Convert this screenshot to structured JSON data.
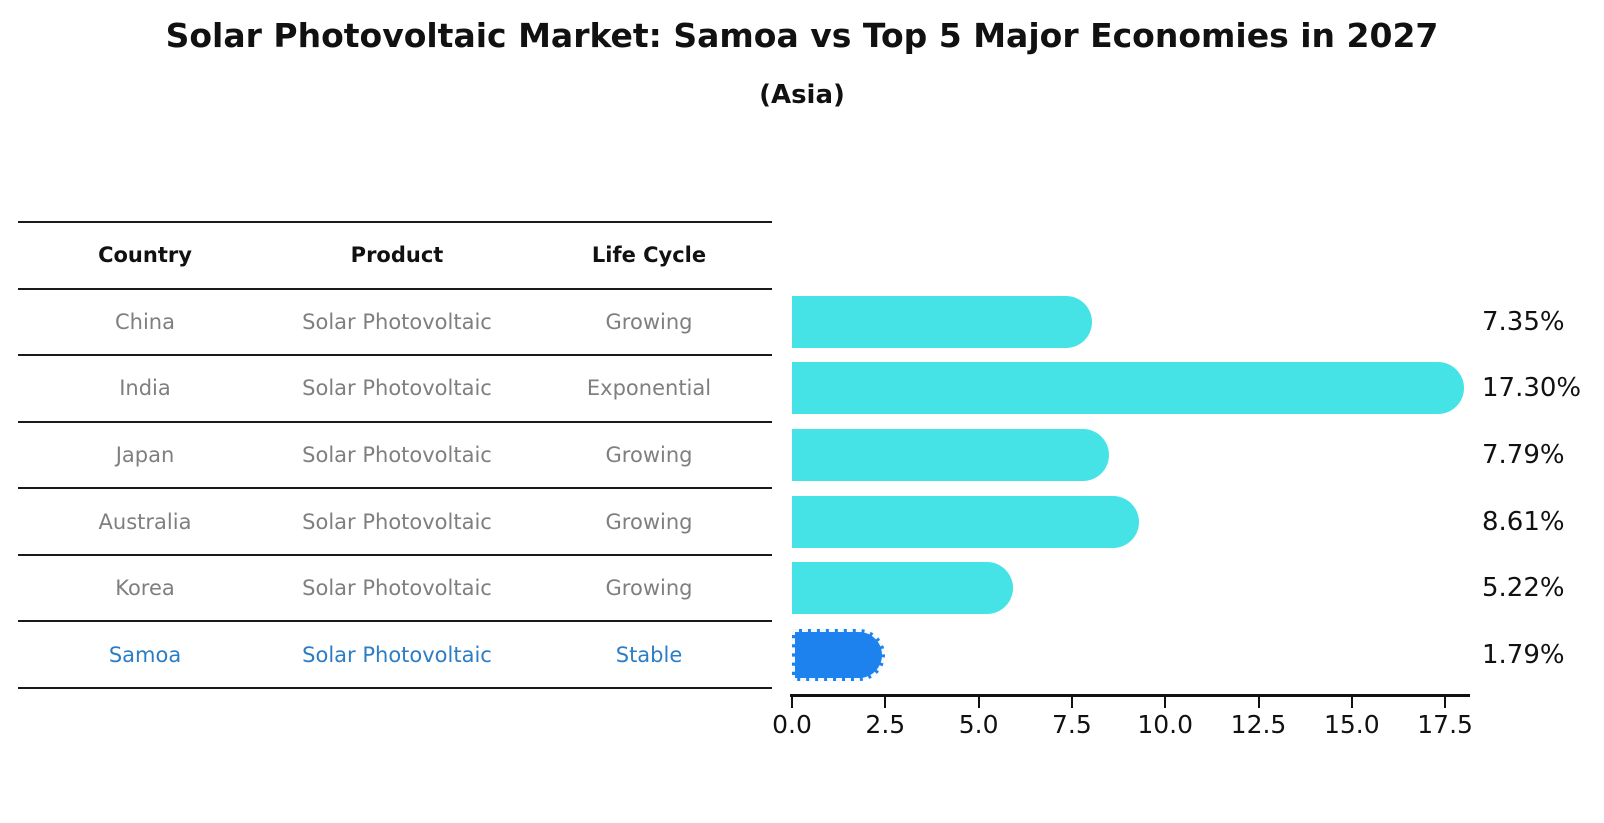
{
  "title": "Solar Photovoltaic Market: Samoa vs Top 5 Major Economies in 2027",
  "subtitle": "(Asia)",
  "table": {
    "headers": [
      "Country",
      "Product",
      "Life Cycle"
    ],
    "rows": [
      {
        "country": "China",
        "product": "Solar Photovoltaic",
        "life_cycle": "Growing",
        "highlight": false
      },
      {
        "country": "India",
        "product": "Solar Photovoltaic",
        "life_cycle": "Exponential",
        "highlight": false
      },
      {
        "country": "Japan",
        "product": "Solar Photovoltaic",
        "life_cycle": "Growing",
        "highlight": false
      },
      {
        "country": "Australia",
        "product": "Solar Photovoltaic",
        "life_cycle": "Growing",
        "highlight": false
      },
      {
        "country": "Korea",
        "product": "Solar Photovoltaic",
        "life_cycle": "Growing",
        "highlight": false
      },
      {
        "country": "Samoa",
        "product": "Solar Photovoltaic",
        "life_cycle": "Stable",
        "highlight": true
      }
    ]
  },
  "chart_data": {
    "type": "bar",
    "orientation": "horizontal",
    "title": "Solar Photovoltaic Market: Samoa vs Top 5 Major Economies in 2027",
    "subtitle": "(Asia)",
    "categories": [
      "China",
      "India",
      "Japan",
      "Australia",
      "Korea",
      "Samoa"
    ],
    "values": [
      7.35,
      17.3,
      7.79,
      8.61,
      5.22,
      1.79
    ],
    "value_labels": [
      "7.35%",
      "17.30%",
      "7.79%",
      "8.61%",
      "5.22%",
      "1.79%"
    ],
    "highlight_category": "Samoa",
    "x_ticks": [
      0.0,
      2.5,
      5.0,
      7.5,
      10.0,
      12.5,
      15.0,
      17.5
    ],
    "x_tick_labels": [
      "0.0",
      "2.5",
      "5.0",
      "7.5",
      "10.0",
      "12.5",
      "15.0",
      "17.5"
    ],
    "xlim": [
      0,
      18.2
    ],
    "grid": false,
    "legend": false,
    "colors": {
      "bar": "#45e3e6",
      "highlight_bar": "#1e82ee",
      "highlight_text": "#2c7dc5",
      "row_text": "#7f7f7f",
      "label_text": "#111111"
    }
  }
}
